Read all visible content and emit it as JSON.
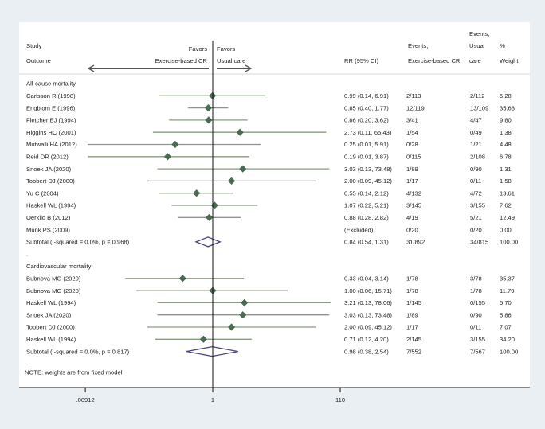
{
  "chart_data": {
    "type": "forest",
    "x_scale": "log",
    "x_ticks": [
      {
        "value": 0.00912,
        "label": ".00912"
      },
      {
        "value": 1,
        "label": "1"
      },
      {
        "value": 110,
        "label": "110"
      }
    ],
    "xlim": [
      0.00912,
      110
    ],
    "null_line": 1,
    "headers": {
      "study": "Study",
      "outcome": "Outcome",
      "favors_left_1": "Favors",
      "favors_left_2": "Exercise-based CR",
      "favors_right_1": "Favors",
      "favors_right_2": "Usual care",
      "rr": "RR (95% CI)",
      "events_cr_1": "Events,",
      "events_cr_2": "Exercise-based CR",
      "events_uc_1": "Events,",
      "events_uc_2": "Usual",
      "events_uc_3": "care",
      "weight_1": "%",
      "weight_2": "Weight"
    },
    "groups": [
      {
        "name": "All-cause mortality",
        "studies": [
          {
            "study": "Carlsson R (1998)",
            "rr": 0.99,
            "lo": 0.14,
            "hi": 6.91,
            "rr_text": "0.99 (0.14, 6.91)",
            "ev_cr": "2/113",
            "ev_uc": "2/112",
            "weight": "5.28"
          },
          {
            "study": "Engblom E (1996)",
            "rr": 0.85,
            "lo": 0.4,
            "hi": 1.77,
            "rr_text": "0.85 (0.40, 1.77)",
            "ev_cr": "12/119",
            "ev_uc": "13/109",
            "weight": "35.68"
          },
          {
            "study": "Fletcher BJ (1994)",
            "rr": 0.86,
            "lo": 0.2,
            "hi": 3.62,
            "rr_text": "0.86 (0.20, 3.62)",
            "ev_cr": "3/41",
            "ev_uc": "4/47",
            "weight": "9.80"
          },
          {
            "study": "Higgins HC (2001)",
            "rr": 2.73,
            "lo": 0.11,
            "hi": 65.43,
            "rr_text": "2.73 (0.11, 65.43)",
            "ev_cr": "1/54",
            "ev_uc": "0/49",
            "weight": "1.38"
          },
          {
            "study": "Mutwalli HA (2012)",
            "rr": 0.25,
            "lo": 0.01,
            "hi": 5.91,
            "rr_text": "0.25 (0.01, 5.91)",
            "ev_cr": "0/28",
            "ev_uc": "1/21",
            "weight": "4.48"
          },
          {
            "study": "Reid DR (2012)",
            "rr": 0.19,
            "lo": 0.01,
            "hi": 3.87,
            "rr_text": "0.19 (0.01, 3.87)",
            "ev_cr": "0/115",
            "ev_uc": "2/108",
            "weight": "6.78"
          },
          {
            "study": "Snoek JA (2020)",
            "rr": 3.03,
            "lo": 0.13,
            "hi": 73.48,
            "rr_text": "3.03 (0.13, 73.48)",
            "ev_cr": "1/89",
            "ev_uc": "0/90",
            "weight": "1.31"
          },
          {
            "study": "Toobert DJ (2000)",
            "rr": 2.0,
            "lo": 0.09,
            "hi": 45.12,
            "rr_text": "2.00 (0.09, 45.12)",
            "ev_cr": "1/17",
            "ev_uc": "0/11",
            "weight": "1.58"
          },
          {
            "study": "Yu C (2004)",
            "rr": 0.55,
            "lo": 0.14,
            "hi": 2.12,
            "rr_text": "0.55 (0.14, 2.12)",
            "ev_cr": "4/132",
            "ev_uc": "4/72",
            "weight": "13.61"
          },
          {
            "study": "Haskell WL (1994)",
            "rr": 1.07,
            "lo": 0.22,
            "hi": 5.21,
            "rr_text": "1.07 (0.22, 5.21)",
            "ev_cr": "3/145",
            "ev_uc": "3/155",
            "weight": "7.62"
          },
          {
            "study": "Oerkild B (2012)",
            "rr": 0.88,
            "lo": 0.28,
            "hi": 2.82,
            "rr_text": "0.88 (0.28, 2.82)",
            "ev_cr": "4/19",
            "ev_uc": "5/21",
            "weight": "12.49"
          },
          {
            "study": "Munk PS (2009)",
            "rr": null,
            "lo": null,
            "hi": null,
            "rr_text": "(Excluded)",
            "ev_cr": "0/20",
            "ev_uc": "0/20",
            "weight": "0.00"
          }
        ],
        "subtotal": {
          "label": "Subtotal  (I-squared = 0.0%, p = 0.968)",
          "rr": 0.84,
          "lo": 0.54,
          "hi": 1.31,
          "rr_text": "0.84 (0.54, 1.31)",
          "ev_cr": "31/892",
          "ev_uc": "34/815",
          "weight": "100.00"
        },
        "spacer": "."
      },
      {
        "name": "Cardiovascular mortality",
        "studies": [
          {
            "study": "Bubnova MG (2020)",
            "rr": 0.33,
            "lo": 0.04,
            "hi": 3.14,
            "rr_text": "0.33 (0.04, 3.14)",
            "ev_cr": "1/78",
            "ev_uc": "3/78",
            "weight": "35.37"
          },
          {
            "study": "Bubnova MG (2020)",
            "rr": 1.0,
            "lo": 0.06,
            "hi": 15.71,
            "rr_text": "1.00 (0.06, 15.71)",
            "ev_cr": "1/78",
            "ev_uc": "1/78",
            "weight": "11.79"
          },
          {
            "study": "Haskell WL (1994)",
            "rr": 3.21,
            "lo": 0.13,
            "hi": 78.06,
            "rr_text": "3.21 (0.13, 78.06)",
            "ev_cr": "1/145",
            "ev_uc": "0/155",
            "weight": "5.70"
          },
          {
            "study": "Snoek JA (2020)",
            "rr": 3.03,
            "lo": 0.13,
            "hi": 73.48,
            "rr_text": "3.03 (0.13, 73.48)",
            "ev_cr": "1/89",
            "ev_uc": "0/90",
            "weight": "5.86"
          },
          {
            "study": "Toobert DJ (2000)",
            "rr": 2.0,
            "lo": 0.09,
            "hi": 45.12,
            "rr_text": "2.00 (0.09, 45.12)",
            "ev_cr": "1/17",
            "ev_uc": "0/11",
            "weight": "7.07"
          },
          {
            "study": "Haskell WL (1994)",
            "rr": 0.71,
            "lo": 0.12,
            "hi": 4.2,
            "rr_text": "0.71 (0.12, 4.20)",
            "ev_cr": "2/145",
            "ev_uc": "3/155",
            "weight": "34.20"
          }
        ],
        "subtotal": {
          "label": "Subtotal  (I-squared = 0.0%, p = 0.817)",
          "rr": 0.98,
          "lo": 0.38,
          "hi": 2.54,
          "rr_text": "0.98 (0.38, 2.54)",
          "ev_cr": "7/552",
          "ev_uc": "7/567",
          "weight": "100.00"
        },
        "spacer": "."
      }
    ],
    "note": "NOTE: weights are from fixed model",
    "colors": {
      "marker": "#4a6b52",
      "ci": "#8a9a82",
      "diamond": "#4b4577",
      "axis": "#111111"
    }
  }
}
